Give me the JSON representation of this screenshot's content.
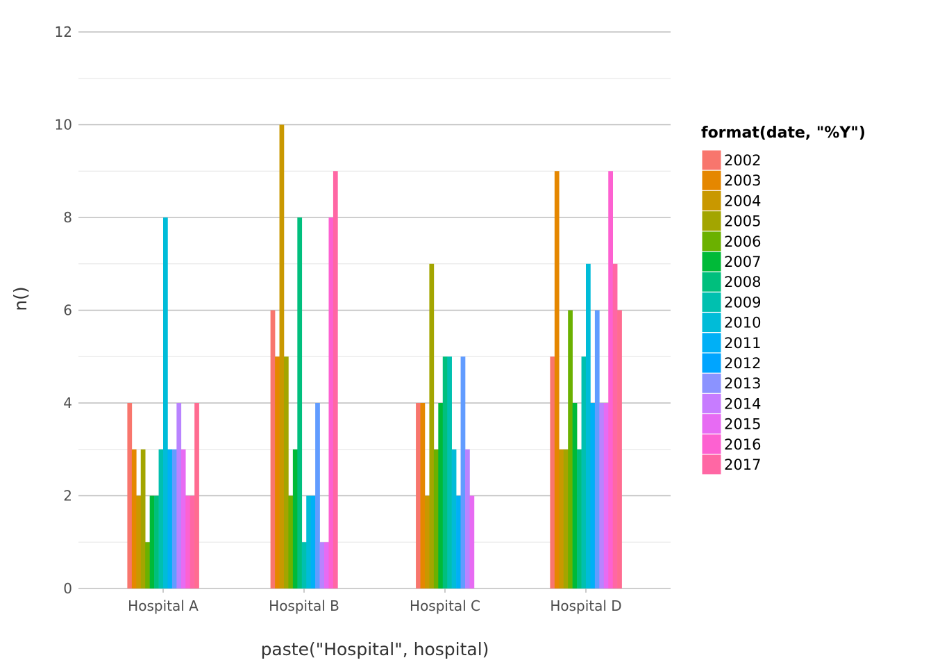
{
  "chart_data": {
    "type": "bar",
    "xlabel": "paste(\"Hospital\", hospital)",
    "ylabel": "n()",
    "ylim": [
      0,
      12
    ],
    "yticks": [
      0,
      2,
      4,
      6,
      8,
      10,
      12
    ],
    "grid": true,
    "legend": {
      "title": "format(date, \"%Y\")",
      "placement": "right",
      "entries": [
        "2002",
        "2003",
        "2004",
        "2005",
        "2006",
        "2007",
        "2008",
        "2009",
        "2010",
        "2011",
        "2012",
        "2013",
        "2014",
        "2015",
        "2016",
        "2017"
      ]
    },
    "categories": [
      "Hospital A",
      "Hospital B",
      "Hospital C",
      "Hospital D"
    ],
    "series": [
      {
        "name": "2002",
        "color": "#F8766D",
        "values": [
          4,
          6,
          4,
          5
        ]
      },
      {
        "name": "2003",
        "color": "#E58700",
        "values": [
          3,
          5,
          4,
          9
        ]
      },
      {
        "name": "2004",
        "color": "#C99800",
        "values": [
          2,
          10,
          2,
          3
        ]
      },
      {
        "name": "2005",
        "color": "#A3A500",
        "values": [
          3,
          5,
          7,
          3
        ]
      },
      {
        "name": "2006",
        "color": "#6BB100",
        "values": [
          1,
          2,
          3,
          6
        ]
      },
      {
        "name": "2007",
        "color": "#00BA38",
        "values": [
          2,
          3,
          4,
          4
        ]
      },
      {
        "name": "2008",
        "color": "#00BF7D",
        "values": [
          2,
          8,
          5,
          3
        ]
      },
      {
        "name": "2009",
        "color": "#00C0AF",
        "values": [
          3,
          1,
          5,
          5
        ]
      },
      {
        "name": "2010",
        "color": "#00BCD8",
        "values": [
          8,
          2,
          3,
          7
        ]
      },
      {
        "name": "2011",
        "color": "#00B0F6",
        "values": [
          3,
          2,
          2,
          4
        ]
      },
      {
        "name": "2012",
        "color": "#619CFF",
        "values": [
          3,
          4,
          5,
          6
        ]
      },
      {
        "name": "2013",
        "color": "#B983FF",
        "values": [
          4,
          1,
          3,
          4
        ]
      },
      {
        "name": "2014",
        "color": "#E76BF3",
        "values": [
          3,
          1,
          2,
          4
        ]
      },
      {
        "name": "2015",
        "color": "#FD61D1",
        "values": [
          2,
          8,
          null,
          9
        ]
      },
      {
        "name": "2016",
        "color": "#FF67A4",
        "values": [
          2,
          9,
          null,
          7
        ]
      },
      {
        "name": "2017",
        "color": "#FF6C91",
        "values": [
          4,
          null,
          null,
          6
        ]
      }
    ],
    "legend_colors": [
      "#F8766D",
      "#E58700",
      "#C99800",
      "#A3A500",
      "#6BB100",
      "#00BA38",
      "#00BF7D",
      "#00C0AF",
      "#00BCD8",
      "#00B0F6",
      "#00A5FF",
      "#8B93FF",
      "#C77CFF",
      "#E76BF3",
      "#FD61D1",
      "#FF67A4"
    ]
  }
}
